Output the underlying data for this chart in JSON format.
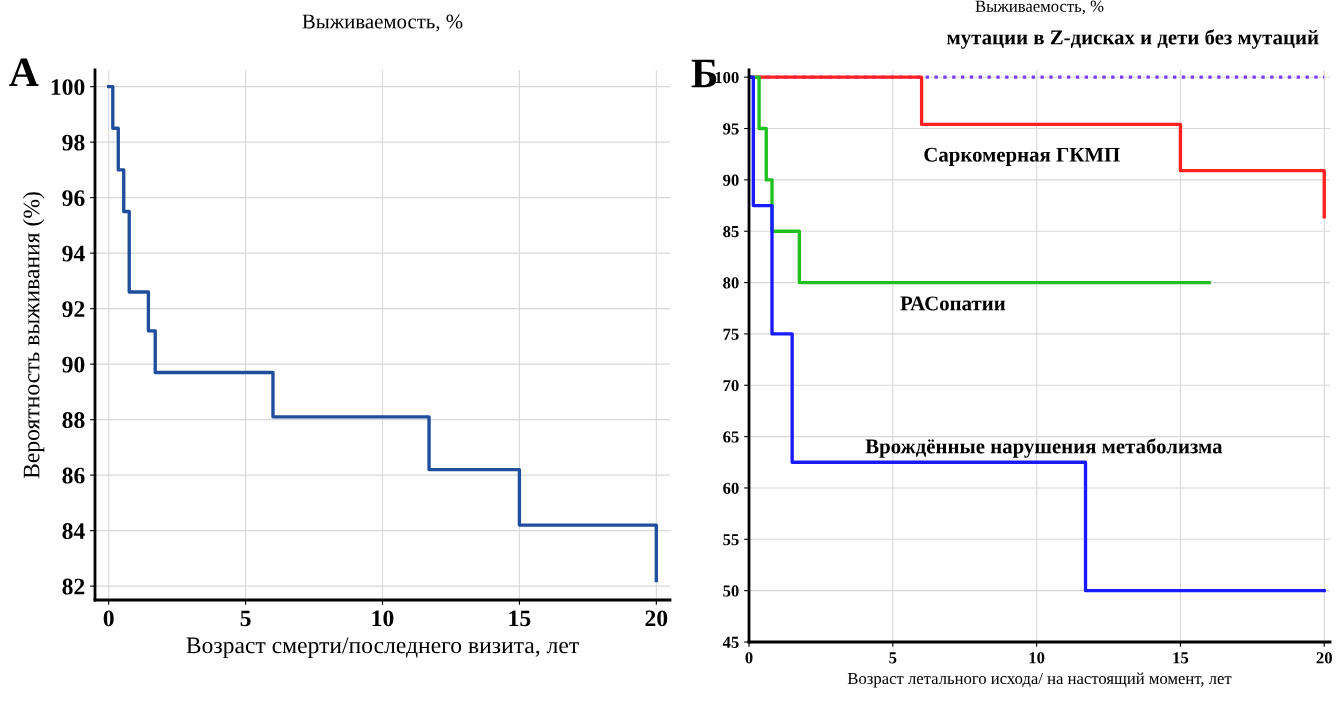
{
  "chart_data": [
    {
      "type": "step",
      "title": "Выживаемость, %",
      "xlabel": "Возраст смерти/последнего визита, лет",
      "ylabel": "Вероятность выживания (%)",
      "annotations": [
        "А"
      ],
      "xlim": [
        -0.5,
        20.5
      ],
      "xticks": [
        0,
        5,
        10,
        15,
        20
      ],
      "ylim": [
        81.5,
        100.6
      ],
      "yticks": [
        82,
        84,
        86,
        88,
        90,
        92,
        94,
        96,
        98,
        100
      ],
      "grid": true,
      "line_style": "solid",
      "series": [
        {
          "color": "#1f4e9c",
          "x": [
            0,
            0.15,
            0.35,
            0.55,
            0.75,
            1.45,
            1.7,
            6.0,
            11.7,
            15.0,
            20.0,
            20.0
          ],
          "values": [
            100,
            98.5,
            97.0,
            95.5,
            92.6,
            91.2,
            89.7,
            88.1,
            86.2,
            84.2,
            84.2,
            82.2
          ]
        }
      ]
    },
    {
      "type": "step",
      "title": "Выживаемость, %",
      "xlabel": "Возраст летального исхода/ на настоящий момент, лет",
      "annotations": [
        "Б"
      ],
      "xlim": [
        0,
        20.2
      ],
      "xticks": [
        0,
        5,
        10,
        15,
        20
      ],
      "ylim": [
        45,
        100.7
      ],
      "yticks": [
        45,
        50,
        55,
        60,
        65,
        70,
        75,
        80,
        85,
        90,
        95,
        100
      ],
      "grid": true,
      "series": [
        {
          "name": "мутации в Z-дисках и дети без мутаций",
          "color": "#7a3cff",
          "line_style": "dotted",
          "x": [
            0,
            20
          ],
          "values": [
            100,
            100
          ]
        },
        {
          "name": "Саркомерная ГКМП",
          "color": "#ff2020",
          "line_style": "solid",
          "x": [
            0,
            6.0,
            15.0,
            20.0,
            20.0
          ],
          "values": [
            100,
            95.4,
            90.9,
            90.9,
            86.4
          ]
        },
        {
          "name": "РАСопатии",
          "color": "#20c020",
          "line_style": "solid",
          "x": [
            0,
            0.35,
            0.6,
            0.8,
            1.75,
            16.0
          ],
          "values": [
            100,
            95,
            90,
            85,
            80,
            80
          ]
        },
        {
          "name": "Врождённые нарушения метаболизма",
          "color": "#1a1aff",
          "line_style": "solid",
          "x": [
            0,
            0.15,
            0.8,
            1.5,
            11.7,
            20.0
          ],
          "values": [
            100,
            87.5,
            75,
            62.5,
            50,
            50
          ]
        }
      ]
    }
  ]
}
